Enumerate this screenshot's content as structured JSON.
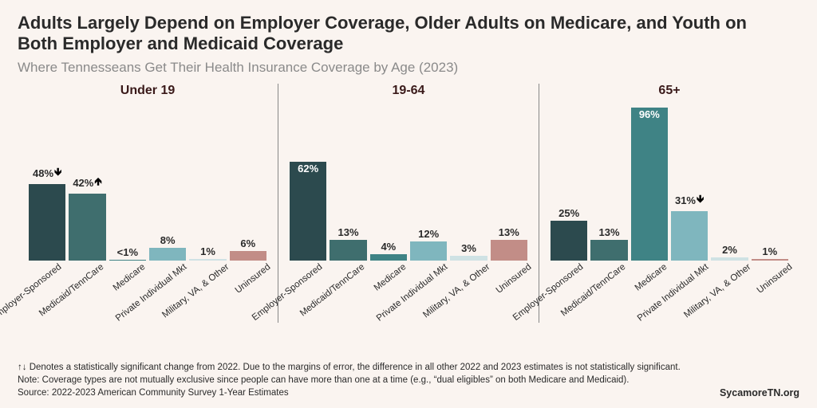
{
  "title": "Adults Largely Depend on Employer Coverage, Older Adults on Medicare, and Youth on Both Employer and Medicaid Coverage",
  "subtitle": "Where Tennesseans Get Their Health Insurance Coverage by Age (2023)",
  "background_color": "#faf4f0",
  "text_color": "#2a2a2a",
  "subtitle_color": "#8a8a8a",
  "value_fontsize": 13,
  "title_fontsize": 22,
  "ymax": 100,
  "categories": [
    "Employer-Sponsored",
    "Medicaid/TennCare",
    "Medicare",
    "Private Individual Mkt",
    "Military, VA, & Other",
    "Uninsured"
  ],
  "bar_colors": [
    "#2c4a4e",
    "#3f6e6e",
    "#3f8385",
    "#7fb6be",
    "#cfe2e4",
    "#c28d87"
  ],
  "panels": [
    {
      "title": "Under 19",
      "bars": [
        {
          "label": "48%",
          "value": 48,
          "arrow": "down",
          "label_inside": false
        },
        {
          "label": "42%",
          "value": 42,
          "arrow": "up",
          "label_inside": false
        },
        {
          "label": "<1%",
          "value": 0.5,
          "arrow": null,
          "label_inside": false
        },
        {
          "label": "8%",
          "value": 8,
          "arrow": null,
          "label_inside": false
        },
        {
          "label": "1%",
          "value": 1,
          "arrow": null,
          "label_inside": false
        },
        {
          "label": "6%",
          "value": 6,
          "arrow": null,
          "label_inside": false
        }
      ]
    },
    {
      "title": "19-64",
      "bars": [
        {
          "label": "62%",
          "value": 62,
          "arrow": null,
          "label_inside": true
        },
        {
          "label": "13%",
          "value": 13,
          "arrow": null,
          "label_inside": false
        },
        {
          "label": "4%",
          "value": 4,
          "arrow": null,
          "label_inside": false
        },
        {
          "label": "12%",
          "value": 12,
          "arrow": null,
          "label_inside": false
        },
        {
          "label": "3%",
          "value": 3,
          "arrow": null,
          "label_inside": false
        },
        {
          "label": "13%",
          "value": 13,
          "arrow": null,
          "label_inside": false
        }
      ]
    },
    {
      "title": "65+",
      "bars": [
        {
          "label": "25%",
          "value": 25,
          "arrow": null,
          "label_inside": false
        },
        {
          "label": "13%",
          "value": 13,
          "arrow": null,
          "label_inside": false
        },
        {
          "label": "96%",
          "value": 96,
          "arrow": null,
          "label_inside": true
        },
        {
          "label": "31%",
          "value": 31,
          "arrow": "down",
          "label_inside": false
        },
        {
          "label": "2%",
          "value": 2,
          "arrow": null,
          "label_inside": false
        },
        {
          "label": "1%",
          "value": 1,
          "arrow": null,
          "label_inside": false
        }
      ]
    }
  ],
  "footnote_arrows": "↑↓ Denotes a statistically significant change from 2022. Due to the margins of error, the difference in all other 2022 and 2023 estimates is not statistically significant.",
  "footnote_note": "Note: Coverage types are not mutually exclusive since people can have more than one at a time (e.g., “dual eligibles” on both Medicare and Medicaid).",
  "footnote_source": "Source: 2022-2023 American Community Survey 1-Year Estimates",
  "site": "SycamoreTN.org"
}
